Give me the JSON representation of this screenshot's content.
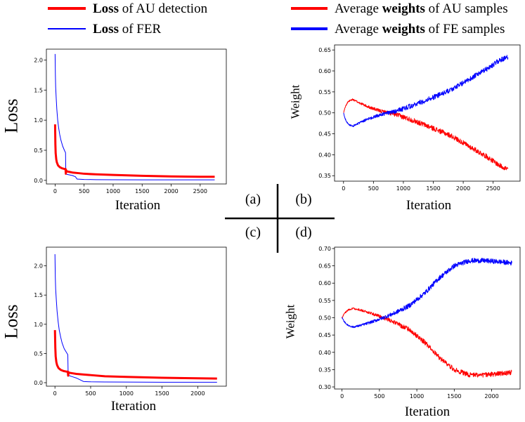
{
  "legend": {
    "left": [
      {
        "bold": "Loss",
        "rest": " of AU detection",
        "color": "#ff0000"
      },
      {
        "bold": "Loss",
        "rest": " of FER",
        "color": "#0000ff"
      }
    ],
    "right": [
      {
        "pre": "Average ",
        "bold": "weights",
        "rest": " of AU samples",
        "color": "#ff0000"
      },
      {
        "pre": "Average ",
        "bold": "weights",
        "rest": " of FE samples",
        "color": "#0000ff"
      }
    ]
  },
  "panel_labels": {
    "a": "(a)",
    "b": "(b)",
    "c": "(c)",
    "d": "(d)"
  },
  "chart_data": [
    {
      "id": "a",
      "type": "line",
      "xlabel": "Iteration",
      "ylabel": "Loss",
      "xlim": [
        -150,
        2950
      ],
      "ylim": [
        -0.06,
        2.18
      ],
      "xticks": [
        0,
        500,
        1000,
        1500,
        2000,
        2500
      ],
      "yticks": [
        0.0,
        0.5,
        1.0,
        1.5,
        2.0
      ],
      "ytick_labels": [
        "0.0",
        "0.5",
        "1.0",
        "1.5",
        "2.0"
      ],
      "series": [
        {
          "name": "Loss of FER",
          "color": "#0000ff",
          "width": 1,
          "x": [
            0,
            5,
            10,
            20,
            30,
            45,
            60,
            80,
            100,
            130,
            160,
            180,
            185,
            200,
            250,
            300,
            350,
            380,
            400,
            500,
            700,
            1000,
            1500,
            2000,
            2500,
            2750
          ],
          "y": [
            2.1,
            1.75,
            1.55,
            1.35,
            1.18,
            1.0,
            0.88,
            0.76,
            0.67,
            0.57,
            0.5,
            0.46,
            0.12,
            0.1,
            0.09,
            0.08,
            0.06,
            0.02,
            0.02,
            0.015,
            0.012,
            0.01,
            0.008,
            0.008,
            0.008,
            0.008
          ]
        },
        {
          "name": "Loss of AU detection",
          "color": "#ff0000",
          "width": 3,
          "x": [
            0,
            5,
            10,
            20,
            30,
            50,
            80,
            120,
            160,
            180,
            185,
            190,
            200,
            250,
            300,
            400,
            500,
            700,
            1000,
            1500,
            2000,
            2500,
            2750
          ],
          "y": [
            0.93,
            0.6,
            0.45,
            0.35,
            0.3,
            0.25,
            0.22,
            0.2,
            0.19,
            0.19,
            0.11,
            0.17,
            0.15,
            0.14,
            0.13,
            0.12,
            0.11,
            0.1,
            0.09,
            0.075,
            0.065,
            0.06,
            0.06
          ]
        }
      ]
    },
    {
      "id": "b",
      "type": "line",
      "xlabel": "Iteration",
      "ylabel": "Weight",
      "xlim": [
        -150,
        2950
      ],
      "ylim": [
        0.337,
        0.662
      ],
      "xticks": [
        0,
        500,
        1000,
        1500,
        2000,
        2500
      ],
      "yticks": [
        0.35,
        0.4,
        0.45,
        0.5,
        0.55,
        0.6,
        0.65
      ],
      "ytick_labels": [
        "0.35",
        "0.40",
        "0.45",
        "0.50",
        "0.55",
        "0.60",
        "0.65"
      ],
      "series": [
        {
          "name": "Average weights of AU samples",
          "color": "#ff0000",
          "width": 1,
          "x": [
            0,
            30,
            80,
            150,
            250,
            400,
            600,
            900,
            1200,
            1500,
            1800,
            2100,
            2400,
            2600,
            2750
          ],
          "y": [
            0.5,
            0.515,
            0.527,
            0.532,
            0.525,
            0.515,
            0.505,
            0.495,
            0.48,
            0.463,
            0.445,
            0.42,
            0.395,
            0.375,
            0.365
          ],
          "noise": 0.006
        },
        {
          "name": "Average weights of FE samples",
          "color": "#0000ff",
          "width": 1,
          "x": [
            0,
            30,
            80,
            150,
            250,
            400,
            600,
            900,
            1200,
            1500,
            1800,
            2100,
            2400,
            2600,
            2750
          ],
          "y": [
            0.5,
            0.485,
            0.473,
            0.468,
            0.475,
            0.485,
            0.495,
            0.505,
            0.52,
            0.537,
            0.555,
            0.58,
            0.605,
            0.625,
            0.633
          ],
          "noise": 0.006
        }
      ]
    },
    {
      "id": "c",
      "type": "line",
      "xlabel": "Iteration",
      "ylabel": "Loss",
      "xlim": [
        -120,
        2400
      ],
      "ylim": [
        -0.06,
        2.32
      ],
      "xticks": [
        0,
        500,
        1000,
        1500,
        2000
      ],
      "yticks": [
        0.0,
        0.5,
        1.0,
        1.5,
        2.0
      ],
      "ytick_labels": [
        "0.0",
        "0.5",
        "1.0",
        "1.5",
        "2.0"
      ],
      "series": [
        {
          "name": "Loss of FER",
          "color": "#0000ff",
          "width": 1,
          "x": [
            0,
            5,
            10,
            20,
            30,
            45,
            60,
            80,
            100,
            130,
            160,
            180,
            185,
            200,
            250,
            300,
            350,
            400,
            500,
            700,
            1000,
            1500,
            2000,
            2270
          ],
          "y": [
            2.2,
            1.8,
            1.6,
            1.4,
            1.22,
            1.04,
            0.9,
            0.78,
            0.68,
            0.58,
            0.52,
            0.48,
            0.14,
            0.12,
            0.1,
            0.08,
            0.05,
            0.02,
            0.015,
            0.012,
            0.01,
            0.008,
            0.008,
            0.008
          ]
        },
        {
          "name": "Loss of AU detection",
          "color": "#ff0000",
          "width": 3,
          "x": [
            0,
            5,
            10,
            20,
            30,
            50,
            80,
            120,
            160,
            180,
            185,
            190,
            200,
            250,
            300,
            400,
            500,
            700,
            1000,
            1500,
            2000,
            2270
          ],
          "y": [
            0.9,
            0.6,
            0.45,
            0.35,
            0.3,
            0.25,
            0.22,
            0.2,
            0.19,
            0.19,
            0.12,
            0.18,
            0.17,
            0.16,
            0.15,
            0.14,
            0.13,
            0.11,
            0.1,
            0.085,
            0.075,
            0.07
          ]
        }
      ]
    },
    {
      "id": "d",
      "type": "line",
      "xlabel": "Iteration",
      "ylabel": "Weight",
      "xlim": [
        -100,
        2380
      ],
      "ylim": [
        0.294,
        0.704
      ],
      "xticks": [
        0,
        500,
        1000,
        1500,
        2000
      ],
      "yticks": [
        0.3,
        0.35,
        0.4,
        0.45,
        0.5,
        0.55,
        0.6,
        0.65,
        0.7
      ],
      "ytick_labels": [
        "0.30",
        "0.35",
        "0.40",
        "0.45",
        "0.50",
        "0.55",
        "0.60",
        "0.65",
        "0.70"
      ],
      "series": [
        {
          "name": "Average weights of AU samples",
          "color": "#ff0000",
          "width": 1,
          "x": [
            0,
            30,
            80,
            150,
            250,
            400,
            550,
            700,
            900,
            1100,
            1300,
            1500,
            1700,
            1900,
            2100,
            2270
          ],
          "y": [
            0.5,
            0.512,
            0.522,
            0.527,
            0.522,
            0.512,
            0.5,
            0.487,
            0.465,
            0.43,
            0.385,
            0.35,
            0.335,
            0.335,
            0.338,
            0.342
          ],
          "noise": 0.007
        },
        {
          "name": "Average weights of FE samples",
          "color": "#0000ff",
          "width": 1,
          "x": [
            0,
            30,
            80,
            150,
            250,
            400,
            550,
            700,
            900,
            1100,
            1300,
            1500,
            1700,
            1900,
            2100,
            2270
          ],
          "y": [
            0.5,
            0.488,
            0.478,
            0.473,
            0.478,
            0.488,
            0.5,
            0.513,
            0.535,
            0.57,
            0.615,
            0.65,
            0.665,
            0.665,
            0.662,
            0.658
          ],
          "noise": 0.007
        }
      ]
    }
  ]
}
